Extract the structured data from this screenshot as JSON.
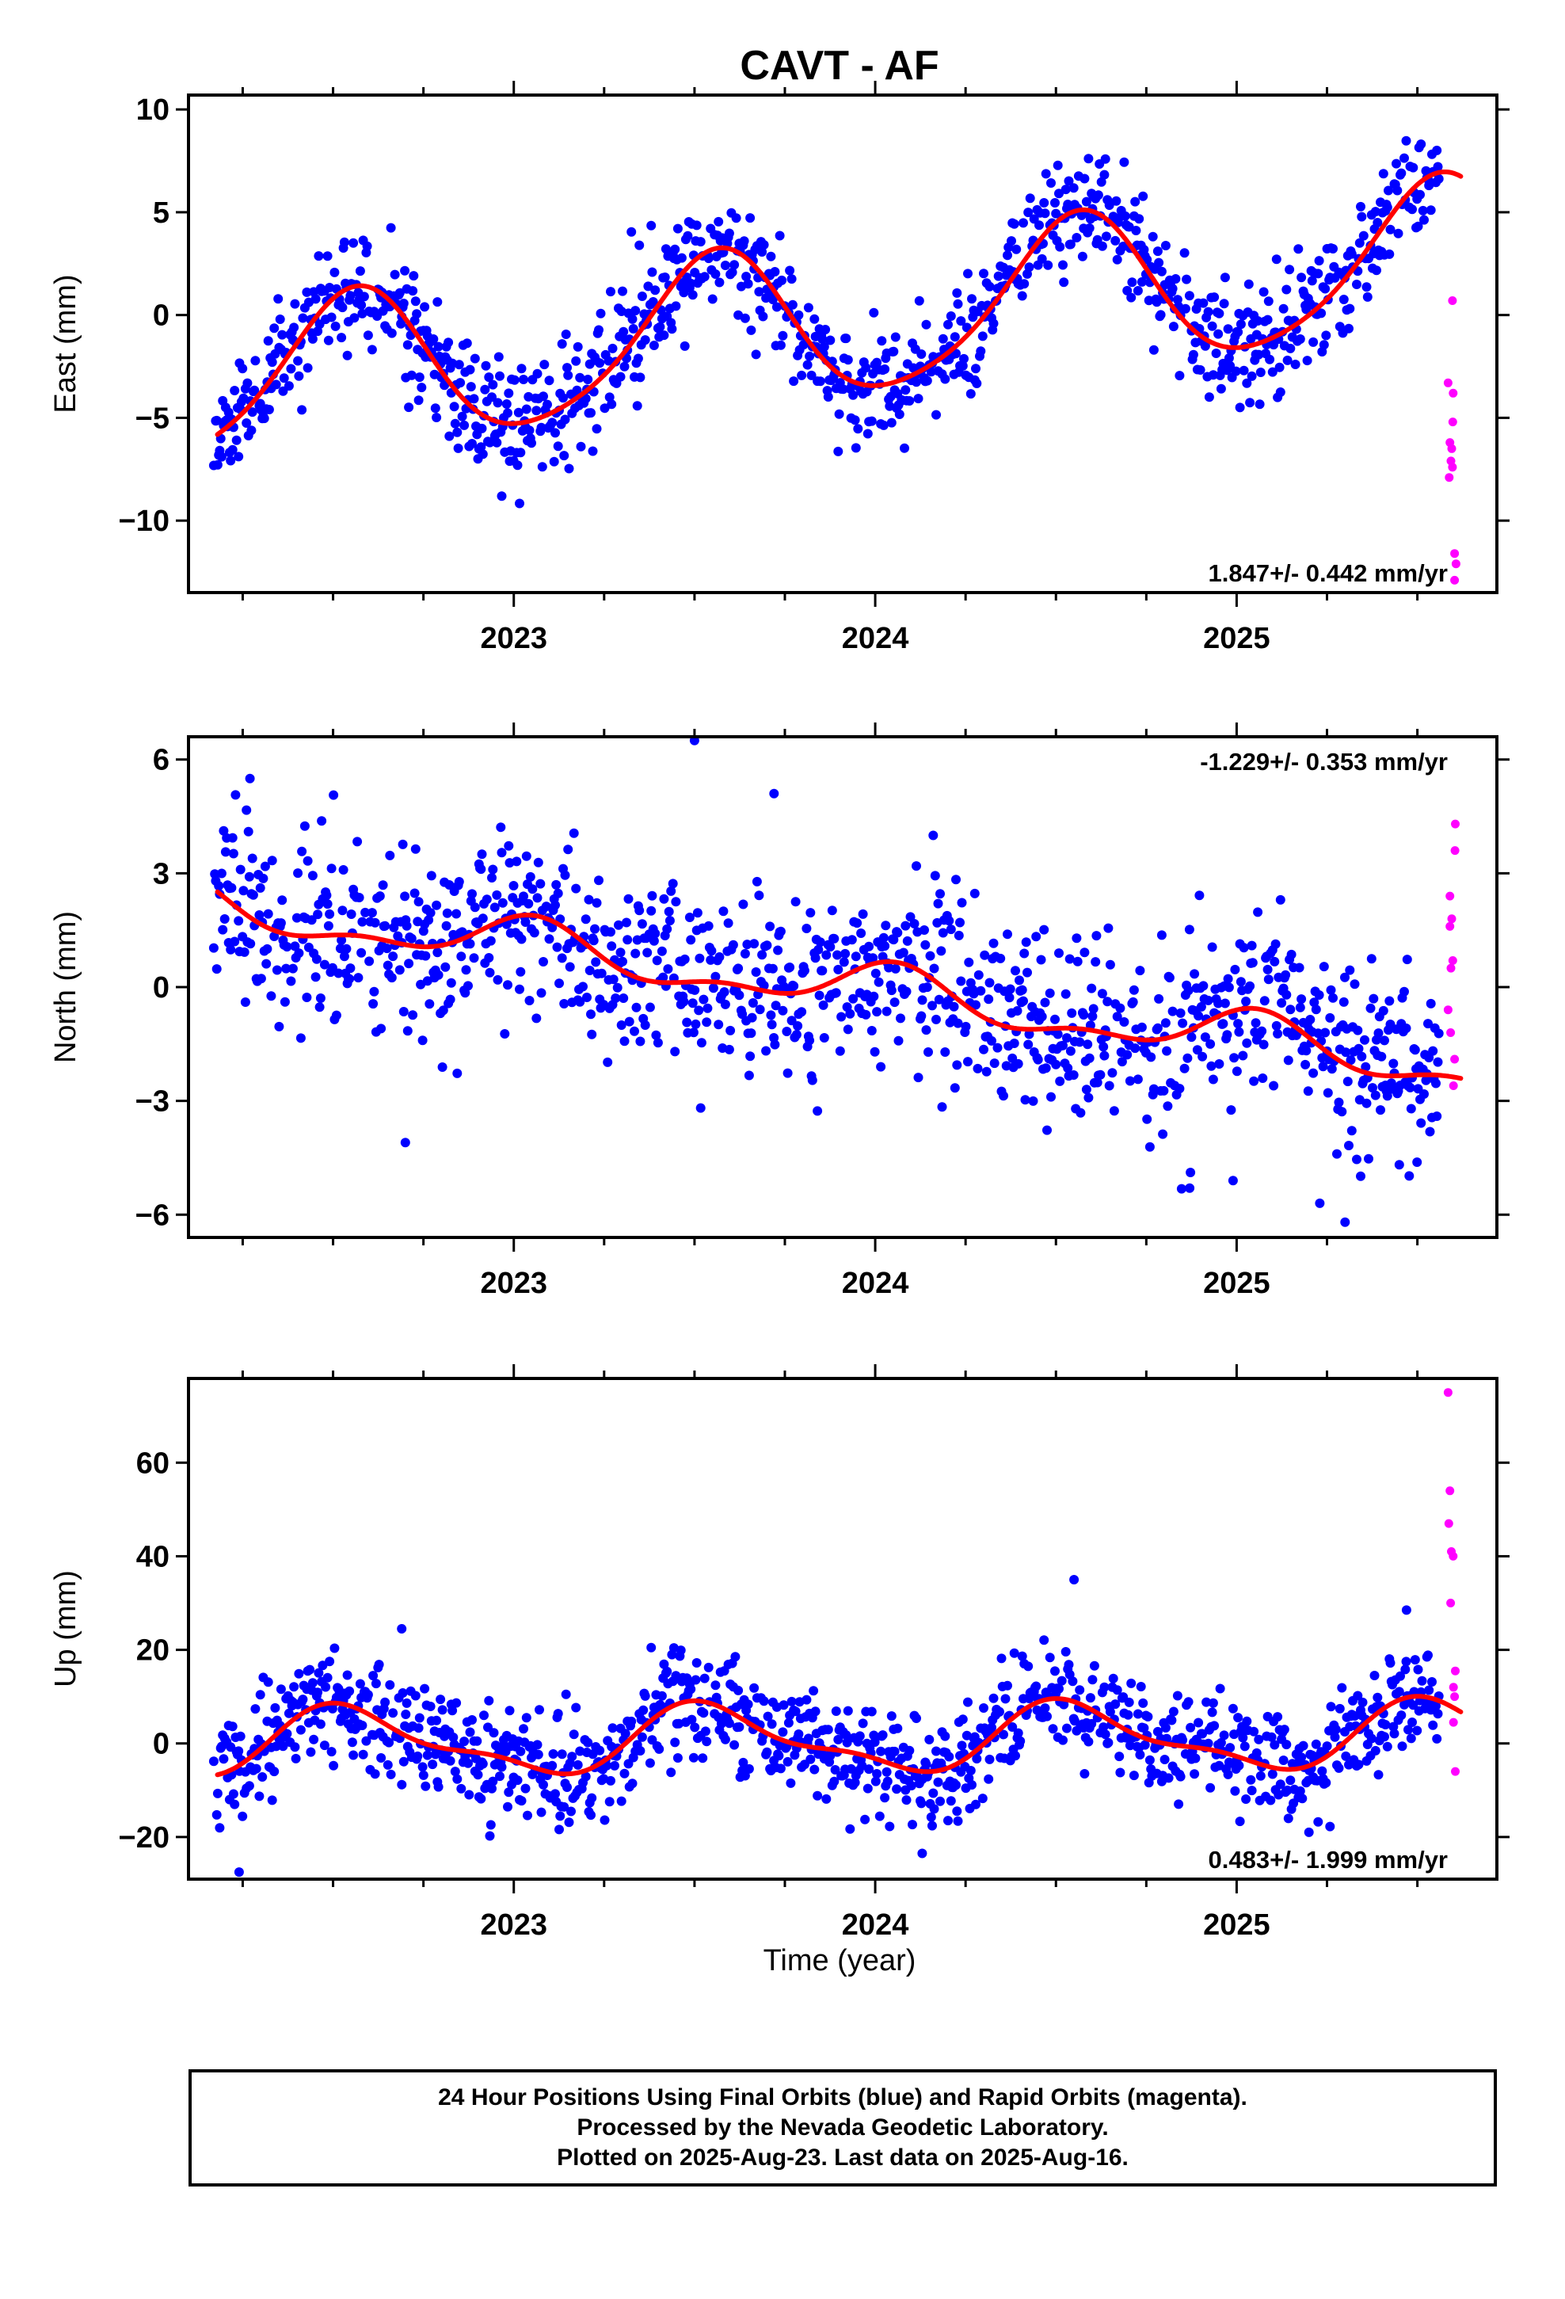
{
  "title": "CAVT - AF",
  "xlabel": "Time (year)",
  "colors": {
    "final": "#0000ff",
    "rapid": "#ff00ff",
    "fit": "#ff0000",
    "frame": "#000000"
  },
  "footnote": [
    "24 Hour Positions Using Final Orbits (blue) and Rapid Orbits (magenta).",
    "Processed by the Nevada Geodetic Laboratory.",
    "Plotted on 2025-Aug-23. Last data on 2025-Aug-16."
  ],
  "chart_data": [
    {
      "type": "scatter",
      "component": "East",
      "ylabel": "East (mm)",
      "rate_label": "1.847+/- 0.442 mm/yr",
      "rate_position": "bottom-right",
      "xlim": [
        2022.1,
        2025.72
      ],
      "ylim": [
        -13.5,
        10.7
      ],
      "yticks": [
        -10,
        -5,
        0,
        5,
        10
      ],
      "ytick_labels": [
        "−10",
        "−5",
        "0",
        "5",
        "10"
      ],
      "xticks": [
        2023,
        2024,
        2025
      ],
      "xtick_labels": [
        "2023",
        "2024",
        "2025"
      ],
      "grid": false,
      "series": [
        {
          "name": "Final Orbits (blue)",
          "model": {
            "start": 2022.17,
            "end": 2025.56,
            "noise": 1.45,
            "seed": 11
          },
          "points": []
        },
        {
          "name": "Rapid Orbits (magenta)",
          "points": [
            [
              2025.597,
              0.7
            ],
            [
              2025.585,
              -3.3
            ],
            [
              2025.599,
              -3.8
            ],
            [
              2025.59,
              -6.2
            ],
            [
              2025.595,
              -6.5
            ],
            [
              2025.593,
              -7.1
            ],
            [
              2025.597,
              -7.4
            ],
            [
              2025.588,
              -7.9
            ],
            [
              2025.603,
              -11.6
            ],
            [
              2025.607,
              -12.1
            ],
            [
              2025.603,
              -12.9
            ],
            [
              2025.598,
              -5.2
            ]
          ]
        },
        {
          "name": "Fit",
          "model": {
            "intercept": -0.5,
            "rate": 1.847,
            "t0": 2023.8,
            "annual_sin": -1.2,
            "annual_cos": -3.5,
            "semi_sin": 0.5,
            "semi_cos": 0.2,
            "start": 2022.18,
            "end": 2025.62
          }
        }
      ]
    },
    {
      "type": "scatter",
      "component": "North",
      "ylabel": "North (mm)",
      "rate_label": "-1.229+/- 0.353 mm/yr",
      "rate_position": "top-right",
      "xlim": [
        2022.1,
        2025.72
      ],
      "ylim": [
        -6.6,
        6.6
      ],
      "yticks": [
        -6,
        -3,
        0,
        3,
        6
      ],
      "ytick_labels": [
        "−6",
        "−3",
        "0",
        "3",
        "6"
      ],
      "xticks": [
        2023,
        2024,
        2025
      ],
      "xtick_labels": [
        "2023",
        "2024",
        "2025"
      ],
      "grid": false,
      "series": [
        {
          "name": "Final Orbits (blue)",
          "model": {
            "start": 2022.17,
            "end": 2025.56,
            "noise": 1.2,
            "seed": 23
          },
          "points": [
            [
              2023.5,
              6.5
            ],
            [
              2022.27,
              5.5
            ],
            [
              2023.72,
              5.1
            ],
            [
              2022.7,
              -4.1
            ],
            [
              2024.87,
              -5.3
            ],
            [
              2025.3,
              -6.2
            ],
            [
              2025.23,
              -5.7
            ],
            [
              2024.99,
              -5.1
            ]
          ]
        },
        {
          "name": "Rapid Orbits (magenta)",
          "points": [
            [
              2025.605,
              4.3
            ],
            [
              2025.604,
              3.6
            ],
            [
              2025.59,
              2.4
            ],
            [
              2025.595,
              1.8
            ],
            [
              2025.59,
              1.6
            ],
            [
              2025.598,
              0.7
            ],
            [
              2025.593,
              0.5
            ],
            [
              2025.585,
              -0.6
            ],
            [
              2025.603,
              -1.9
            ],
            [
              2025.6,
              -2.6
            ],
            [
              2025.592,
              -1.2
            ]
          ]
        },
        {
          "name": "Fit",
          "model": {
            "intercept": 0.0,
            "rate": -1.229,
            "t0": 2023.9,
            "annual_sin": 0.15,
            "annual_cos": 0.55,
            "semi_sin": 0.2,
            "semi_cos": 0.2,
            "start": 2022.18,
            "end": 2025.62
          }
        }
      ]
    },
    {
      "type": "scatter",
      "component": "Up",
      "ylabel": "Up (mm)",
      "rate_label": "0.483+/- 1.999 mm/yr",
      "rate_position": "bottom-right",
      "xlim": [
        2022.1,
        2025.72
      ],
      "ylim": [
        -29,
        78
      ],
      "yticks": [
        -20,
        0,
        20,
        40,
        60
      ],
      "ytick_labels": [
        "−20",
        "0",
        "20",
        "40",
        "60"
      ],
      "xticks": [
        2023,
        2024,
        2025
      ],
      "xtick_labels": [
        "2023",
        "2024",
        "2025"
      ],
      "grid": false,
      "series": [
        {
          "name": "Final Orbits (blue)",
          "model": {
            "start": 2022.17,
            "end": 2025.56,
            "noise": 5.6,
            "seed": 37
          },
          "points": [
            [
              2022.24,
              -27.5
            ],
            [
              2024.13,
              -23.5
            ],
            [
              2024.55,
              35
            ],
            [
              2022.69,
              24.5
            ],
            [
              2025.47,
              28.5
            ],
            [
              2025.2,
              -19
            ]
          ]
        },
        {
          "name": "Rapid Orbits (magenta)",
          "points": [
            [
              2025.585,
              75
            ],
            [
              2025.59,
              54
            ],
            [
              2025.587,
              47
            ],
            [
              2025.594,
              41
            ],
            [
              2025.599,
              40
            ],
            [
              2025.592,
              30
            ],
            [
              2025.605,
              15.5
            ],
            [
              2025.6,
              12
            ],
            [
              2025.603,
              10
            ],
            [
              2025.6,
              4.5
            ],
            [
              2025.605,
              -6
            ]
          ]
        },
        {
          "name": "Fit",
          "model": {
            "intercept": 0.8,
            "rate": 0.483,
            "t0": 2023.9,
            "annual_sin": -2.0,
            "annual_cos": -6.3,
            "semi_sin": -1.0,
            "semi_cos": 2.2,
            "start": 2022.18,
            "end": 2025.62
          }
        }
      ]
    }
  ]
}
